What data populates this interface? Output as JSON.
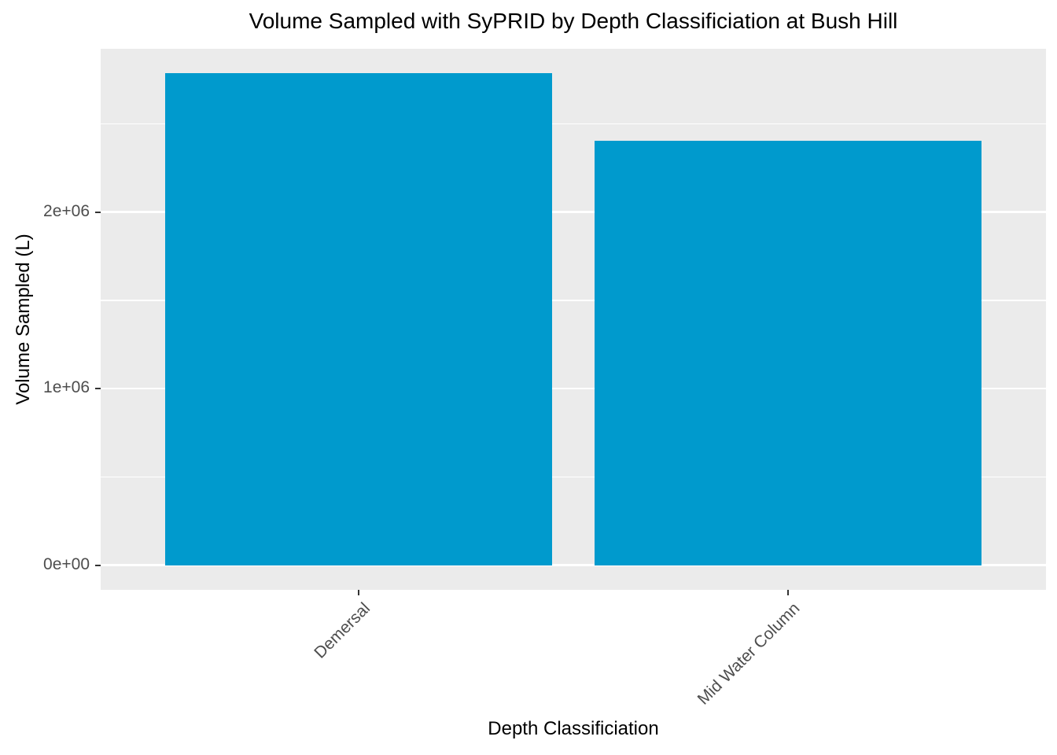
{
  "chart_data": {
    "type": "bar",
    "title": "Volume Sampled with SyPRID by Depth Classificiation at Bush Hill",
    "xlabel": "Depth Classificiation",
    "ylabel": "Volume Sampled (L)",
    "categories": [
      "Demersal",
      "Mid Water Column"
    ],
    "values": [
      2785000,
      2405000
    ],
    "y_major_ticks": [
      {
        "value": 0,
        "label": "0e+00"
      },
      {
        "value": 1000000,
        "label": "1e+06"
      },
      {
        "value": 2000000,
        "label": "2e+06"
      }
    ],
    "y_minor_values": [
      500000,
      1500000,
      2500000
    ],
    "ylim": [
      -140000,
      2925000
    ],
    "legend": "none",
    "grid": "major-and-minor-horizontal",
    "x_tick_label_angle_deg": 45,
    "colors": {
      "bar_fill": "#009ACD",
      "panel_background": "#EBEBEB",
      "gridline": "#FFFFFF",
      "tick_label": "#4D4D4D",
      "tick_mark": "#333333",
      "title_text": "#000000"
    }
  }
}
